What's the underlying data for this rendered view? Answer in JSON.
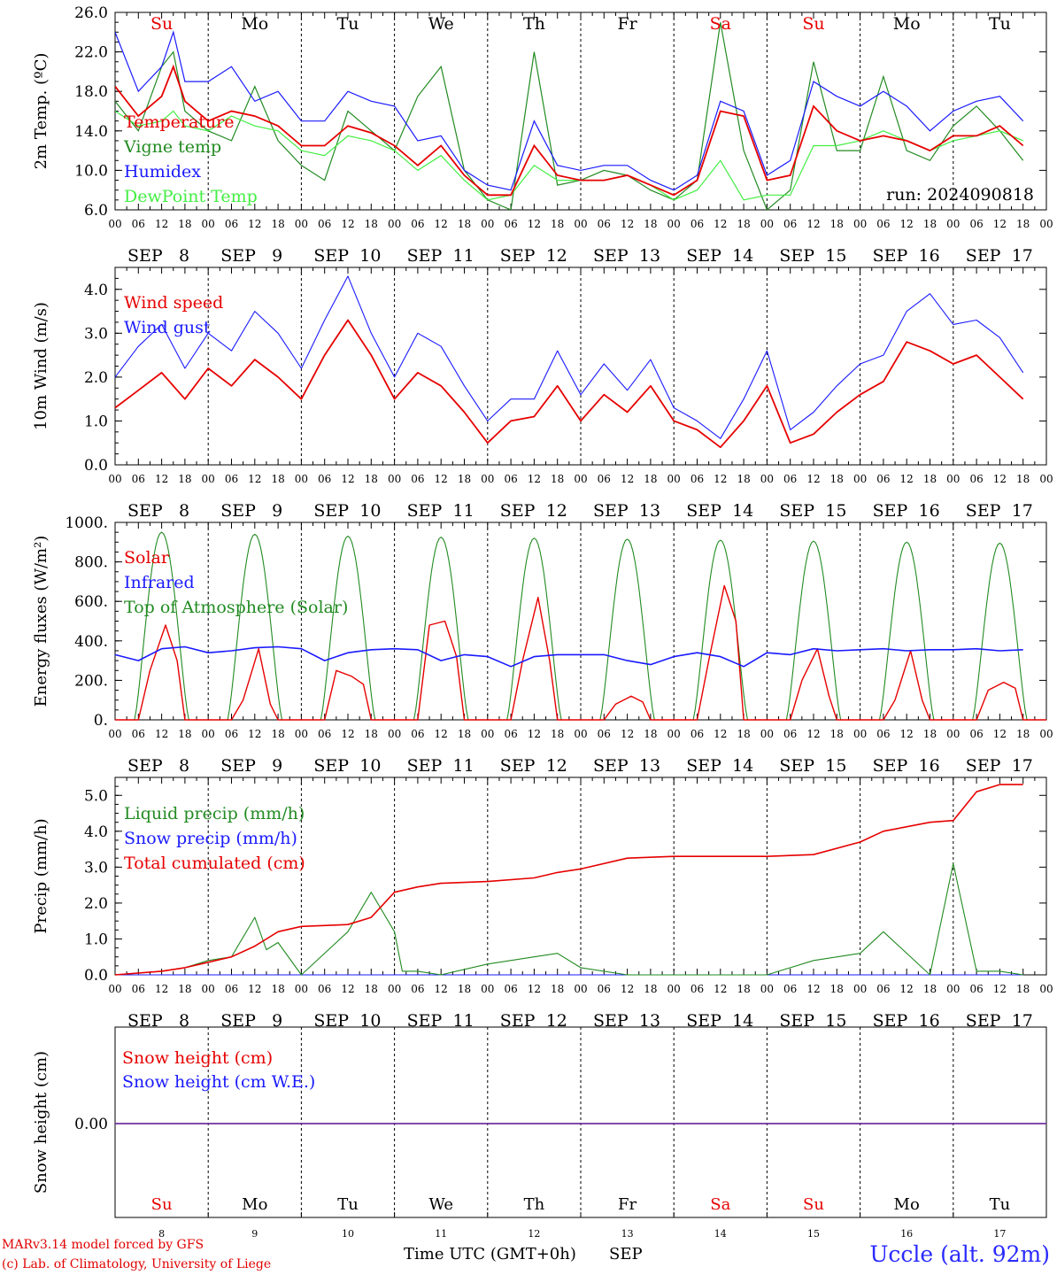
{
  "days": [
    {
      "abbr": "Su",
      "date": "8",
      "weekend": true
    },
    {
      "abbr": "Mo",
      "date": "9",
      "weekend": false
    },
    {
      "abbr": "Tu",
      "date": "10",
      "weekend": false
    },
    {
      "abbr": "We",
      "date": "11",
      "weekend": false
    },
    {
      "abbr": "Th",
      "date": "12",
      "weekend": false
    },
    {
      "abbr": "Fr",
      "date": "13",
      "weekend": false
    },
    {
      "abbr": "Sa",
      "date": "14",
      "weekend": true
    },
    {
      "abbr": "Su",
      "date": "15",
      "weekend": true
    },
    {
      "abbr": "Mo",
      "date": "16",
      "weekend": false
    },
    {
      "abbr": "Tu",
      "date": "17",
      "weekend": false
    }
  ],
  "hour_ticks": [
    "00",
    "06",
    "12",
    "18"
  ],
  "month": "SEP",
  "colors": {
    "red": "#e60000",
    "green": "#228b22",
    "blue": "#1a1aff",
    "lightgreen": "#44ee44",
    "purple": "#7030a0",
    "weekend": "#e60000"
  },
  "footer": {
    "credit_line1": "MARv3.14 model forced by GFS",
    "credit_line2": "(c) Lab. of Climatology, University of Liege",
    "x_title": "Time UTC (GMT+0h)",
    "x_month": "SEP",
    "station": "Uccle (alt. 92m)"
  },
  "chart_data": [
    {
      "type": "line",
      "ylabel": "2m Temp. (ºC)",
      "ylim": [
        6,
        26
      ],
      "yticks": [
        "6.0",
        "10.0",
        "14.0",
        "18.0",
        "22.0",
        "26.0"
      ],
      "annotation": "run: 2024090818",
      "x_hours": [
        0,
        6,
        12,
        15,
        18,
        24,
        30,
        36,
        42,
        48,
        54,
        60,
        66,
        72,
        78,
        84,
        90,
        96,
        102,
        108,
        114,
        120,
        126,
        132,
        138,
        144,
        150,
        156,
        162,
        168,
        174,
        180,
        186,
        192,
        198,
        204,
        210,
        216,
        222,
        228,
        234
      ],
      "series": [
        {
          "name": "Temperature",
          "color": "red",
          "values": [
            18.5,
            15.5,
            17.5,
            20.5,
            17.0,
            15.0,
            16.0,
            15.5,
            14.5,
            12.5,
            12.5,
            14.5,
            13.8,
            12.5,
            10.5,
            12.5,
            9.5,
            7.5,
            7.5,
            12.5,
            9.5,
            9.0,
            9.0,
            9.5,
            8.5,
            7.5,
            9.0,
            16.0,
            15.5,
            9.0,
            9.5,
            16.5,
            14.0,
            13.0,
            13.5,
            13.0,
            12.0,
            13.5,
            13.5,
            14.5,
            12.5
          ]
        },
        {
          "name": "Vigne temp",
          "color": "green",
          "values": [
            17.0,
            14.0,
            20.5,
            22.0,
            16.0,
            14.0,
            13.0,
            18.5,
            13.0,
            10.5,
            9.0,
            16.0,
            14.0,
            12.0,
            17.5,
            20.5,
            10.0,
            7.0,
            6.0,
            22.0,
            8.5,
            9.0,
            10.0,
            9.5,
            8.0,
            7.0,
            9.0,
            25.0,
            12.0,
            6.0,
            8.0,
            21.0,
            12.0,
            12.0,
            19.5,
            12.0,
            11.0,
            14.5,
            16.5,
            14.0,
            11.0
          ]
        },
        {
          "name": "Humidex",
          "color": "blue",
          "values": [
            24.0,
            18.0,
            20.5,
            24.0,
            19.0,
            19.0,
            20.5,
            17.0,
            18.0,
            15.0,
            15.0,
            18.0,
            17.0,
            16.5,
            13.0,
            13.5,
            10.0,
            8.5,
            8.0,
            15.0,
            10.5,
            10.0,
            10.5,
            10.5,
            9.0,
            8.0,
            9.5,
            17.0,
            16.0,
            9.5,
            11.0,
            19.0,
            17.5,
            16.5,
            18.0,
            16.5,
            14.0,
            16.0,
            17.0,
            17.5,
            15.0
          ]
        },
        {
          "name": "DewPoint Temp",
          "color": "lightgreen",
          "values": [
            16.0,
            14.5,
            15.0,
            16.0,
            14.5,
            14.0,
            15.5,
            14.5,
            14.0,
            12.0,
            11.5,
            13.5,
            13.0,
            12.0,
            10.0,
            11.5,
            9.0,
            7.0,
            7.5,
            10.5,
            9.0,
            9.0,
            9.0,
            9.5,
            8.5,
            7.0,
            8.0,
            11.0,
            7.0,
            7.5,
            7.5,
            12.5,
            12.5,
            13.0,
            14.0,
            13.0,
            12.0,
            13.0,
            13.5,
            14.0,
            13.0
          ]
        }
      ]
    },
    {
      "type": "line",
      "ylabel": "10m Wind (m/s)",
      "ylim": [
        0,
        4.5
      ],
      "yticks": [
        "0.0",
        "1.0",
        "2.0",
        "3.0",
        "4.0"
      ],
      "x_hours": [
        0,
        6,
        12,
        18,
        24,
        30,
        36,
        42,
        48,
        54,
        60,
        66,
        72,
        78,
        84,
        90,
        96,
        102,
        108,
        114,
        120,
        126,
        132,
        138,
        144,
        150,
        156,
        162,
        168,
        174,
        180,
        186,
        192,
        198,
        204,
        210,
        216,
        222,
        228,
        234
      ],
      "series": [
        {
          "name": "Wind speed",
          "color": "red",
          "values": [
            1.3,
            1.7,
            2.1,
            1.5,
            2.2,
            1.8,
            2.4,
            2.0,
            1.5,
            2.5,
            3.3,
            2.5,
            1.5,
            2.1,
            1.8,
            1.2,
            0.5,
            1.0,
            1.1,
            1.8,
            1.0,
            1.6,
            1.2,
            1.8,
            1.0,
            0.8,
            0.4,
            1.0,
            1.8,
            0.5,
            0.7,
            1.2,
            1.6,
            1.9,
            2.8,
            2.6,
            2.3,
            2.5,
            2.0,
            1.5
          ]
        },
        {
          "name": "Wind gust",
          "color": "blue",
          "values": [
            2.0,
            2.7,
            3.2,
            2.2,
            3.0,
            2.6,
            3.5,
            3.0,
            2.2,
            3.3,
            4.3,
            3.0,
            2.0,
            3.0,
            2.7,
            1.8,
            1.0,
            1.5,
            1.5,
            2.6,
            1.6,
            2.3,
            1.7,
            2.4,
            1.3,
            1.0,
            0.6,
            1.5,
            2.6,
            0.8,
            1.2,
            1.8,
            2.3,
            2.5,
            3.5,
            3.9,
            3.2,
            3.3,
            2.9,
            2.1
          ]
        }
      ]
    },
    {
      "type": "line",
      "ylabel": "Energy fluxes (W/m²)",
      "ylim": [
        0,
        1000
      ],
      "yticks": [
        "0.",
        "200.",
        "400.",
        "600.",
        "800.",
        "1000."
      ],
      "toa_peaks": [
        950,
        940,
        930,
        925,
        920,
        915,
        910,
        905,
        900,
        895
      ],
      "solar_daily": [
        [
          0,
          0,
          250,
          480,
          300,
          0,
          0
        ],
        [
          0,
          0,
          100,
          360,
          80,
          0,
          0
        ],
        [
          0,
          0,
          250,
          220,
          180,
          0,
          0
        ],
        [
          0,
          0,
          480,
          500,
          320,
          0,
          0
        ],
        [
          0,
          0,
          300,
          620,
          300,
          0,
          0
        ],
        [
          0,
          0,
          80,
          120,
          90,
          0,
          0
        ],
        [
          0,
          0,
          300,
          680,
          500,
          0,
          0
        ],
        [
          0,
          0,
          200,
          360,
          120,
          0,
          0
        ],
        [
          0,
          0,
          100,
          350,
          100,
          0,
          0
        ],
        [
          0,
          0,
          150,
          190,
          160,
          0,
          0
        ]
      ],
      "infrared": [
        330,
        300,
        360,
        370,
        340,
        350,
        365,
        370,
        360,
        300,
        340,
        355,
        360,
        355,
        300,
        330,
        320,
        270,
        320,
        330,
        330,
        330,
        300,
        280,
        320,
        340,
        320,
        270,
        340,
        330,
        360,
        350,
        355,
        360,
        350,
        355,
        355,
        360,
        350,
        355
      ],
      "series": [
        {
          "name": "Solar",
          "color": "red"
        },
        {
          "name": "Infrared",
          "color": "blue"
        },
        {
          "name": "Top of Atmosphere (Solar)",
          "color": "green"
        }
      ]
    },
    {
      "type": "line",
      "ylabel": "Precip (mm/h)",
      "ylim": [
        0,
        5.5
      ],
      "yticks": [
        "0.0",
        "1.0",
        "2.0",
        "3.0",
        "4.0",
        "5.0"
      ],
      "x_hours": [
        0,
        12,
        18,
        24,
        30,
        36,
        39,
        42,
        48,
        60,
        66,
        72,
        74,
        78,
        84,
        96,
        108,
        114,
        120,
        132,
        144,
        156,
        168,
        180,
        192,
        198,
        210,
        216,
        222,
        228,
        234
      ],
      "series": [
        {
          "name": "Liquid precip (mm/h)",
          "color": "green",
          "values": [
            0,
            0.1,
            0.2,
            0.4,
            0.5,
            1.6,
            0.7,
            0.9,
            0,
            1.2,
            2.3,
            1.2,
            0.1,
            0.1,
            0,
            0.3,
            0.5,
            0.6,
            0.2,
            0,
            0,
            0,
            0,
            0.4,
            0.6,
            1.2,
            0,
            3.1,
            0.1,
            0.1,
            0
          ]
        },
        {
          "name": "Snow precip (mm/h)",
          "color": "blue",
          "values": [
            0,
            0,
            0,
            0,
            0,
            0,
            0,
            0,
            0,
            0,
            0,
            0,
            0,
            0,
            0,
            0,
            0,
            0,
            0,
            0,
            0,
            0,
            0,
            0,
            0,
            0,
            0,
            0,
            0,
            0,
            0
          ]
        },
        {
          "name": "Total cumulated (cm)",
          "color": "red",
          "values": [
            0,
            0.1,
            0.2,
            0.35,
            0.5,
            0.8,
            1.0,
            1.2,
            1.35,
            1.4,
            1.6,
            2.3,
            2.35,
            2.45,
            2.55,
            2.6,
            2.7,
            2.85,
            2.95,
            3.25,
            3.3,
            3.3,
            3.3,
            3.35,
            3.7,
            4.0,
            4.25,
            4.3,
            5.1,
            5.3,
            5.3
          ]
        }
      ]
    },
    {
      "type": "line",
      "ylabel": "Snow height (cm)",
      "yticks": [
        "0.00"
      ],
      "series": [
        {
          "name": "Snow height (cm)",
          "color": "red",
          "values": [
            0,
            0
          ]
        },
        {
          "name": "Snow height (cm W.E.)",
          "color": "blue",
          "values": [
            0,
            0
          ]
        }
      ]
    }
  ]
}
